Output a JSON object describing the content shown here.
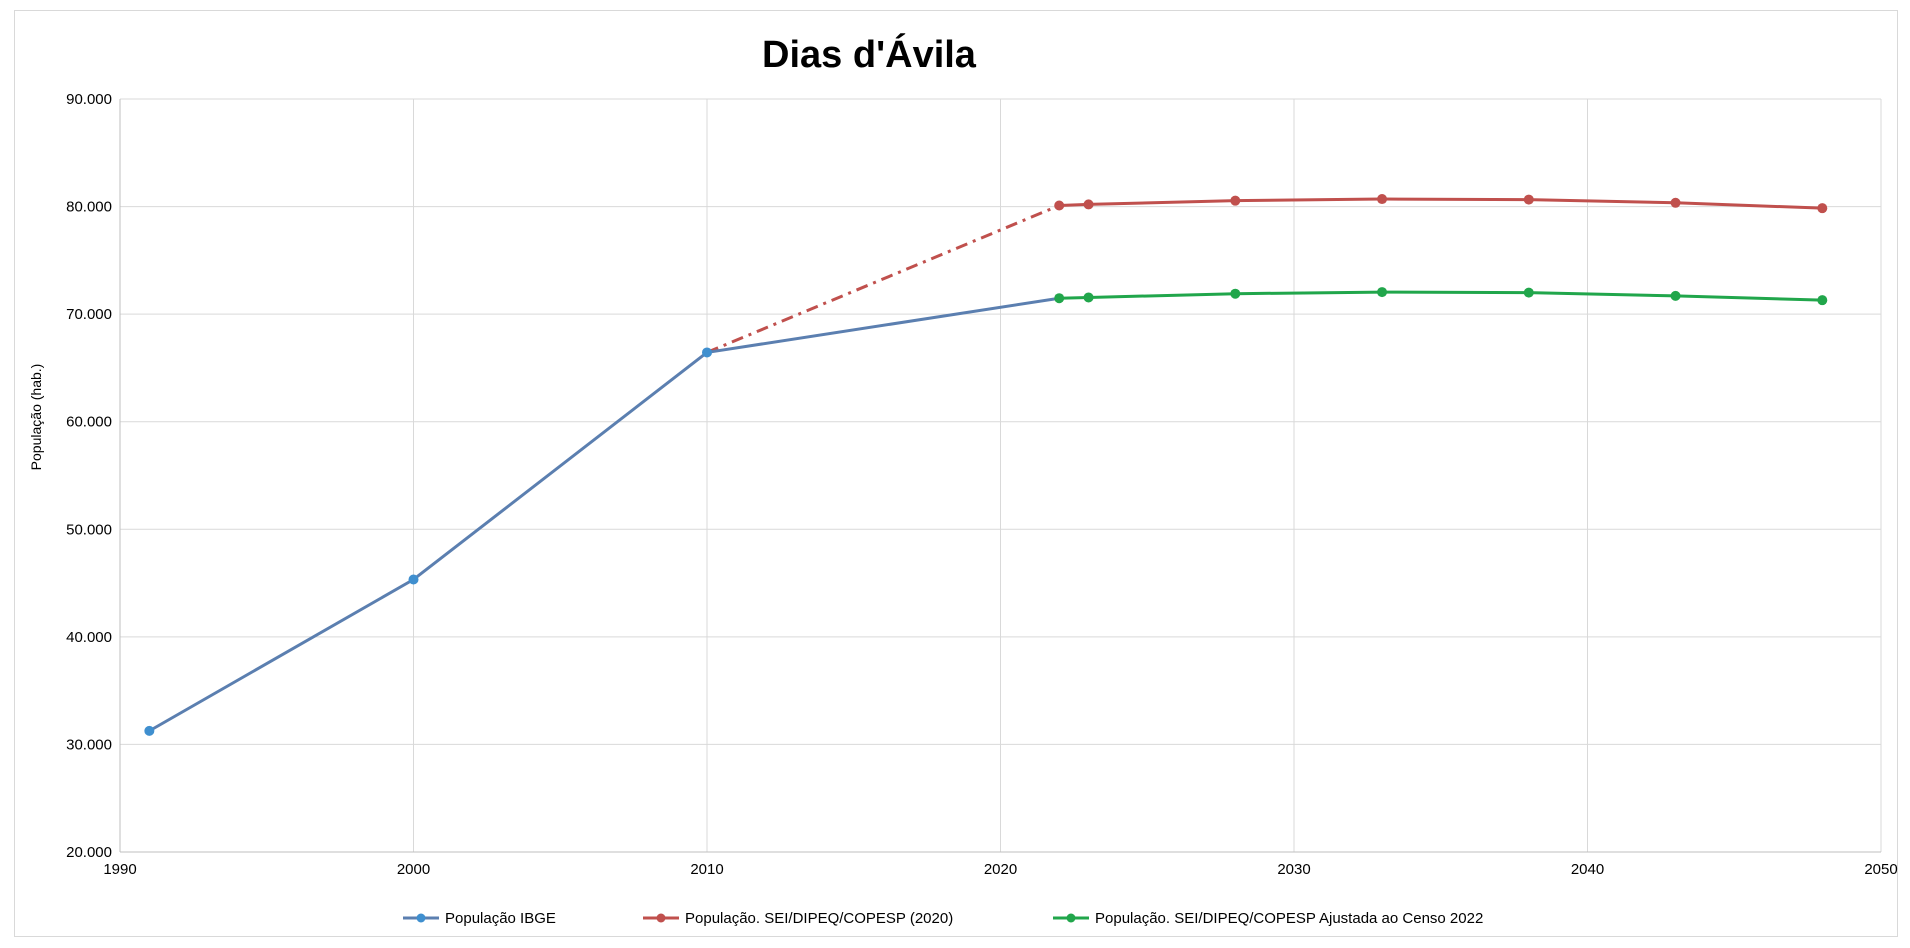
{
  "chart_data": {
    "type": "line",
    "title": "Dias d'Ávila",
    "xlabel": "",
    "ylabel": "População (hab.)",
    "xlim": [
      1990,
      2050
    ],
    "ylim": [
      20000,
      90000
    ],
    "x_ticks": [
      1990,
      2000,
      2010,
      2020,
      2030,
      2040,
      2050
    ],
    "x_tick_labels": [
      "1990",
      "2000",
      "2010",
      "2020",
      "2030",
      "2040",
      "2050"
    ],
    "y_ticks": [
      20000,
      30000,
      40000,
      50000,
      60000,
      70000,
      80000,
      90000
    ],
    "y_tick_labels": [
      "20.000",
      "30.000",
      "40.000",
      "50.000",
      "60.000",
      "70.000",
      "80.000",
      "90.000"
    ],
    "grid": true,
    "legend_position": "bottom",
    "series": [
      {
        "name": "População IBGE",
        "color": "#5b7fb0",
        "marker_color": "#3f8fcf",
        "points": [
          {
            "x": 1991,
            "y": 31260
          },
          {
            "x": 2000,
            "y": 45333
          },
          {
            "x": 2010,
            "y": 66440
          },
          {
            "x": 2022,
            "y": 71480
          }
        ],
        "marker_indices": [
          0,
          1,
          2
        ]
      },
      {
        "name": "População. SEI/DIPEQ/COPESP (2020)",
        "color": "#c0504d",
        "points": [
          {
            "x": 2022,
            "y": 80100
          },
          {
            "x": 2023,
            "y": 80200
          },
          {
            "x": 2028,
            "y": 80550
          },
          {
            "x": 2033,
            "y": 80700
          },
          {
            "x": 2038,
            "y": 80650
          },
          {
            "x": 2043,
            "y": 80350
          },
          {
            "x": 2048,
            "y": 79850
          }
        ]
      },
      {
        "name": "População. SEI/DIPEQ/COPESP Ajustada ao Censo 2022",
        "color": "#21a64b",
        "points": [
          {
            "x": 2022,
            "y": 71480
          },
          {
            "x": 2023,
            "y": 71550
          },
          {
            "x": 2028,
            "y": 71900
          },
          {
            "x": 2033,
            "y": 72050
          },
          {
            "x": 2038,
            "y": 72000
          },
          {
            "x": 2043,
            "y": 71700
          },
          {
            "x": 2048,
            "y": 71300
          }
        ]
      }
    ],
    "connector": {
      "style": "dash-dot",
      "color": "#c0504d",
      "from": {
        "x": 2010,
        "y": 66440
      },
      "to": {
        "x": 2022,
        "y": 80100
      }
    }
  }
}
